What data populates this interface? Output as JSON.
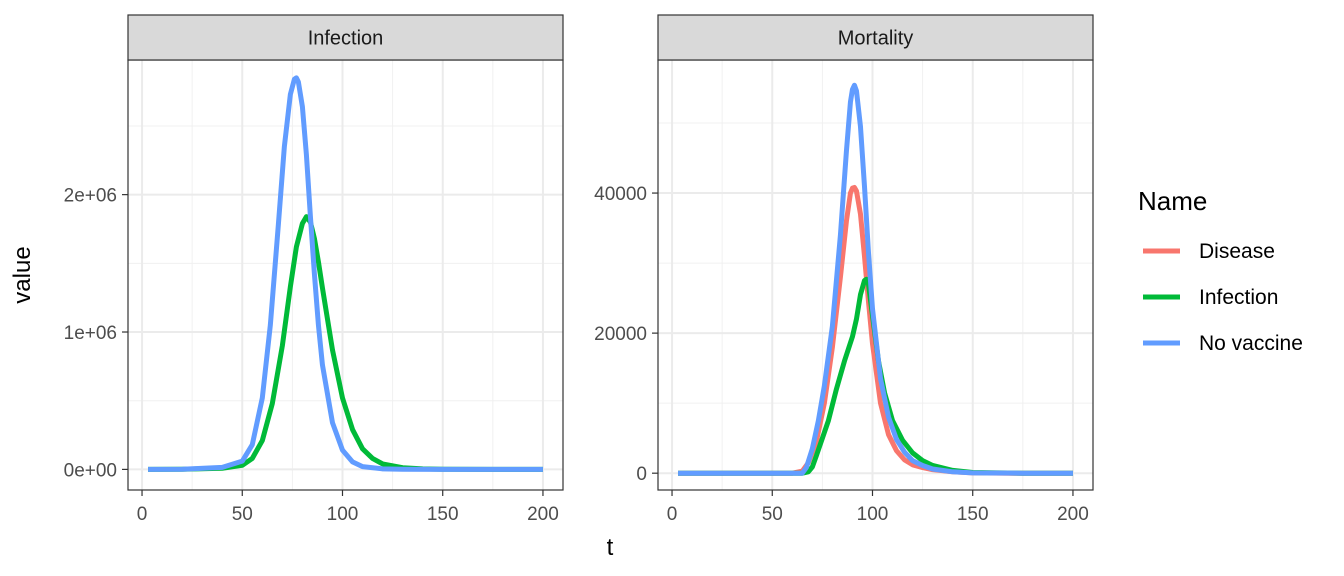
{
  "chart_data": {
    "type": "line",
    "xlabel": "t",
    "ylabel": "value",
    "legend": {
      "title": "Name",
      "position": "right",
      "entries": [
        {
          "name": "Disease",
          "color": "#F8766D"
        },
        {
          "name": "Infection",
          "color": "#00BA38"
        },
        {
          "name": "No vaccine",
          "color": "#619CFF"
        }
      ]
    },
    "grid": true,
    "facets": [
      {
        "name": "Infection",
        "xlim": [
          -7,
          210
        ],
        "ylim": [
          -150000,
          2980000
        ],
        "xticks": [
          0,
          50,
          100,
          150,
          200
        ],
        "xtick_labels": [
          "0",
          "50",
          "100",
          "150",
          "200"
        ],
        "yticks": [
          0,
          1000000,
          2000000
        ],
        "ytick_labels": [
          "0e+00",
          "1e+06",
          "2e+06"
        ],
        "series": [
          {
            "name": "Infection",
            "color": "#00BA38",
            "x": [
              3,
              20,
              40,
              50,
              55,
              60,
              65,
              70,
              74,
              77,
              80,
              82,
              84,
              86,
              88,
              90,
              95,
              100,
              105,
              110,
              115,
              120,
              130,
              140,
              150,
              175,
              200
            ],
            "y": [
              0,
              1000,
              8000,
              30000,
              80000,
              210000,
              480000,
              900000,
              1330000,
              1620000,
              1790000,
              1840000,
              1800000,
              1680000,
              1510000,
              1320000,
              870000,
              520000,
              290000,
              150000,
              80000,
              40000,
              12000,
              4000,
              1000,
              0,
              0
            ]
          },
          {
            "name": "No vaccine",
            "color": "#619CFF",
            "x": [
              3,
              20,
              40,
              50,
              55,
              60,
              64,
              68,
              71,
              74,
              76,
              77,
              78,
              80,
              82,
              84,
              86,
              88,
              90,
              95,
              100,
              105,
              110,
              120,
              130,
              150,
              175,
              200
            ],
            "y": [
              0,
              1000,
              15000,
              60000,
              180000,
              520000,
              1050000,
              1780000,
              2350000,
              2730000,
              2840000,
              2850000,
              2820000,
              2640000,
              2290000,
              1840000,
              1420000,
              1050000,
              760000,
              340000,
              140000,
              55000,
              20000,
              4000,
              1000,
              0,
              0,
              0
            ]
          }
        ]
      },
      {
        "name": "Mortality",
        "xlim": [
          -7,
          210
        ],
        "ylim": [
          -2400,
          59000
        ],
        "xticks": [
          0,
          50,
          100,
          150,
          200
        ],
        "xtick_labels": [
          "0",
          "50",
          "100",
          "150",
          "200"
        ],
        "yticks": [
          0,
          20000,
          40000
        ],
        "ytick_labels": [
          "0",
          "20000",
          "40000"
        ],
        "series": [
          {
            "name": "Disease",
            "color": "#F8766D",
            "x": [
              3,
              50,
              60,
              65,
              68,
              72,
              76,
              80,
              84,
              87,
              89,
              90,
              91,
              92,
              94,
              96,
              98,
              100,
              104,
              108,
              112,
              116,
              120,
              125,
              130,
              140,
              150,
              170,
              200
            ],
            "y": [
              0,
              0,
              0,
              300,
              1500,
              4500,
              10000,
              18000,
              28000,
              36000,
              40000,
              40700,
              40800,
              40300,
              37000,
              31000,
              24500,
              18500,
              10000,
              5500,
              3200,
              1900,
              1200,
              800,
              500,
              200,
              50,
              0,
              0
            ]
          },
          {
            "name": "Infection",
            "color": "#00BA38",
            "x": [
              3,
              50,
              65,
              68,
              70,
              72,
              75,
              78,
              82,
              86,
              90,
              92,
              94,
              96,
              97,
              98,
              100,
              103,
              106,
              110,
              115,
              120,
              125,
              130,
              140,
              150,
              175,
              200
            ],
            "y": [
              0,
              0,
              0,
              200,
              900,
              2500,
              5000,
              7500,
              12000,
              16000,
              19500,
              22000,
              25500,
              27500,
              27700,
              27000,
              22500,
              16000,
              11500,
              7500,
              4700,
              2900,
              1800,
              1100,
              400,
              100,
              0,
              0
            ]
          },
          {
            "name": "No vaccine",
            "color": "#619CFF",
            "x": [
              3,
              50,
              65,
              67,
              70,
              73,
              76,
              80,
              84,
              87,
              89,
              90,
              91,
              92,
              94,
              96,
              98,
              100,
              104,
              108,
              112,
              116,
              120,
              125,
              130,
              140,
              150,
              175,
              200
            ],
            "y": [
              0,
              0,
              0,
              800,
              3500,
              7500,
              12500,
              21000,
              34000,
              46000,
              53000,
              54800,
              55400,
              54600,
              49500,
              41000,
              31500,
              23500,
              13500,
              8000,
              4800,
              3000,
              1800,
              1100,
              600,
              200,
              50,
              0,
              0
            ]
          }
        ]
      }
    ]
  }
}
